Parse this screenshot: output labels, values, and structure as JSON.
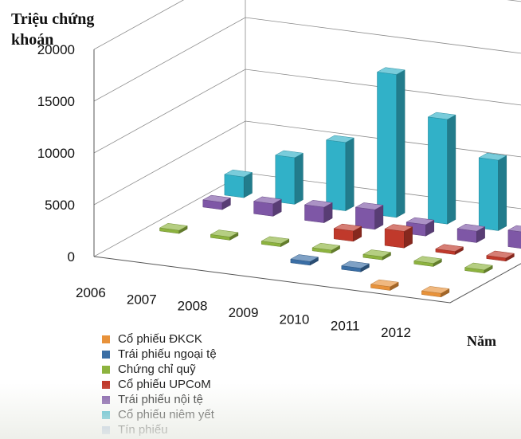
{
  "chart_data": {
    "type": "bar",
    "ylabel": "Triệu chứng khoán",
    "xlabel": "Năm",
    "ylim": [
      0,
      20000
    ],
    "yticks": [
      "0",
      "5000",
      "10000",
      "15000",
      "20000"
    ],
    "categories": [
      "2006",
      "2007",
      "2008",
      "2009",
      "2010",
      "2011",
      "2012"
    ],
    "legend_position": "bottom-left",
    "series": [
      {
        "name": "Cổ phiếu ĐKCK",
        "color": "#E8923A",
        "values": [
          0,
          0,
          0,
          0,
          0,
          350,
          350
        ]
      },
      {
        "name": "Trái phiếu ngoại tệ",
        "color": "#3A6EA5",
        "values": [
          0,
          0,
          0,
          350,
          350,
          0,
          0
        ]
      },
      {
        "name": "Chứng chỉ quỹ",
        "color": "#8DB33F",
        "values": [
          300,
          300,
          300,
          300,
          300,
          300,
          300
        ]
      },
      {
        "name": "Cổ phiếu UPCoM",
        "color": "#C0392B",
        "values": [
          0,
          0,
          0,
          1000,
          1600,
          300,
          300
        ]
      },
      {
        "name": "Trái phiếu nội tệ",
        "color": "#7E57A6",
        "values": [
          700,
          1200,
          1500,
          1900,
          1100,
          1100,
          1600
        ]
      },
      {
        "name": "Cổ phiếu niêm yết",
        "color": "#31B1C8",
        "values": [
          2000,
          4500,
          6600,
          13800,
          10100,
          6800,
          6600
        ]
      },
      {
        "name": "Tín phiếu",
        "color": "#9DB7DA",
        "values": [
          0,
          0,
          0,
          0,
          0,
          0,
          200
        ]
      }
    ]
  }
}
